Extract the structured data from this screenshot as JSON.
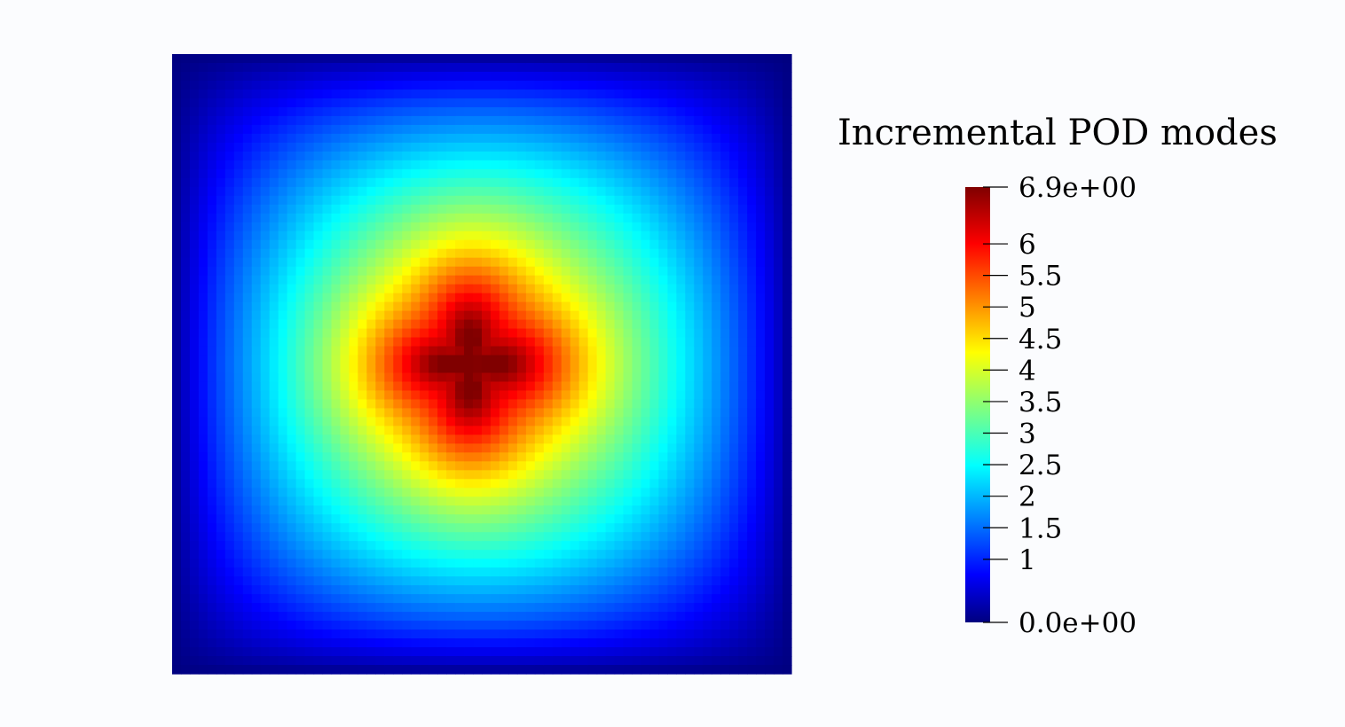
{
  "chart_data": {
    "type": "heatmap",
    "title": "",
    "colorbar": {
      "title": "Incremental POD modes",
      "range": [
        0,
        6.9
      ],
      "max_label": "6.9e+00",
      "min_label": "0.0e+00",
      "ticks": [
        {
          "value": 6,
          "label": "6"
        },
        {
          "value": 5.5,
          "label": "5.5"
        },
        {
          "value": 5,
          "label": "5"
        },
        {
          "value": 4.5,
          "label": "4.5"
        },
        {
          "value": 4,
          "label": "4"
        },
        {
          "value": 3.5,
          "label": "3.5"
        },
        {
          "value": 3,
          "label": "3"
        },
        {
          "value": 2.5,
          "label": "2.5"
        },
        {
          "value": 2,
          "label": "2"
        },
        {
          "value": 1.5,
          "label": "1.5"
        },
        {
          "value": 1,
          "label": "1"
        }
      ],
      "colormap": "jet",
      "colormap_stops": [
        "#00007f",
        "#0000ff",
        "#00ffff",
        "#ffff00",
        "#ff0000",
        "#7f0000"
      ]
    },
    "field": {
      "description_peak_value": 6.9,
      "boundary_value": 0.0,
      "shape": "centered peak with four-lobed (diamond) plateau"
    }
  }
}
